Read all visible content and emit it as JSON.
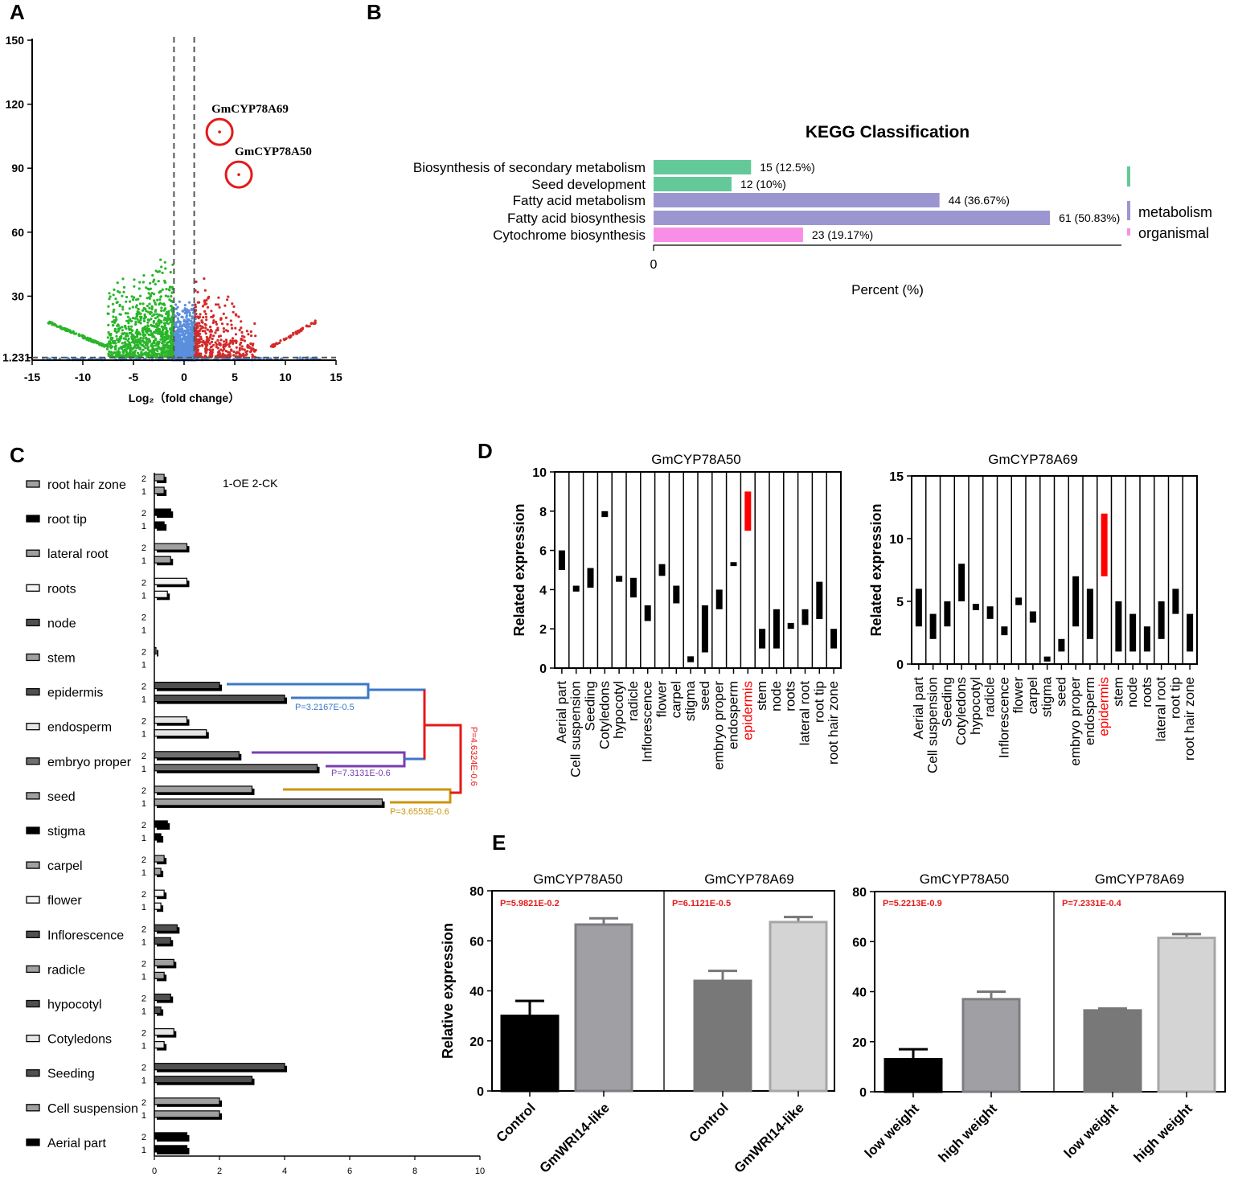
{
  "panel_letters": [
    "A",
    "B",
    "C",
    "D",
    "E"
  ],
  "chart_data": [
    {
      "panel": "A",
      "type": "scatter",
      "title": "",
      "xlabel": "Log₂（fold change）",
      "ylabel": "",
      "xlim": [
        -15,
        15
      ],
      "ylim": [
        0,
        150
      ],
      "xticks": [
        -15,
        -10,
        -5,
        0,
        5,
        10,
        15
      ],
      "yticks": [
        150,
        120,
        90,
        60,
        30
      ],
      "threshold_y": 1.231,
      "threshold_y_label": "1.231",
      "threshold_x": [
        -1,
        1
      ],
      "colors": {
        "down": "#2ab52a",
        "ns": "#5b8fde",
        "up": "#d42a2a",
        "highlight": "#e31a1a"
      },
      "highlights": [
        {
          "label": "GmCYP78A69",
          "x": 3.5,
          "y": 107
        },
        {
          "label": "GmCYP78A50",
          "x": 5.4,
          "y": 87
        }
      ]
    },
    {
      "panel": "B",
      "type": "bar",
      "title": "KEGG Classification",
      "xlabel": "Percent (%)",
      "xtick": "0",
      "categories": [
        "Biosynthesis of secondary metabolism",
        "Seed development",
        "Fatty acid metabolism",
        "Fatty acid biosynthesis",
        "Cytochrome biosynthesis"
      ],
      "values": [
        15,
        12,
        44,
        61,
        23
      ],
      "value_labels": [
        "15 (12.5%)",
        "12 (10%)",
        "44 (36.67%)",
        "61 (50.83%)",
        "23 (19.17%)"
      ],
      "bar_colors": [
        "#63c998",
        "#63c998",
        "#9b96d0",
        "#9b96d0",
        "#f98ee6"
      ],
      "xlim": [
        0,
        72
      ],
      "groups": [
        {
          "label": "",
          "color": "#63c998"
        },
        {
          "label": "metabolism",
          "color": "#9b96d0"
        },
        {
          "label": "organismal",
          "color": "#f98ee6"
        }
      ]
    },
    {
      "panel": "C",
      "type": "bar",
      "title": "",
      "legend_note": "1-OE 2-CK",
      "categories": [
        "root hair zone",
        "root tip",
        "lateral root",
        "roots",
        "node",
        "stem",
        "epidermis",
        "endosperm",
        "embryo proper",
        "seed",
        "stigma",
        "carpel",
        "flower",
        "Inflorescence",
        "radicle",
        "hypocotyl",
        "Cotyledons",
        "Seeding",
        "Cell suspension",
        "Aerial part"
      ],
      "category_colors": [
        "#a0a0a0",
        "#000000",
        "#a0a0a0",
        "#f4f4f4",
        "#505050",
        "#a0a0a0",
        "#505050",
        "#e6e6e6",
        "#707070",
        "#a0a0a0",
        "#000000",
        "#a0a0a0",
        "#f4f4f4",
        "#505050",
        "#a0a0a0",
        "#505050",
        "#e6e6e6",
        "#505050",
        "#a0a0a0",
        "#000000"
      ],
      "series": [
        {
          "name": "2",
          "values": [
            0.3,
            0.5,
            1.0,
            1.0,
            0.0,
            0.05,
            2.0,
            1.0,
            2.6,
            3.0,
            0.4,
            0.3,
            0.3,
            0.7,
            0.6,
            0.5,
            0.6,
            4.0,
            2.0,
            1.0
          ]
        },
        {
          "name": "1",
          "values": [
            0.3,
            0.3,
            0.5,
            0.4,
            0.0,
            0.0,
            4.0,
            1.6,
            5.0,
            7.0,
            0.2,
            0.2,
            0.2,
            0.5,
            0.3,
            0.2,
            0.3,
            3.0,
            2.0,
            1.0
          ]
        }
      ],
      "xlim": [
        0,
        10
      ],
      "xticks": [
        0,
        2,
        4,
        6,
        8,
        10
      ],
      "brackets": [
        {
          "label": "P=3.2167E-0.5",
          "color": "#3c78c8"
        },
        {
          "label": "P=7.3131E-0.6",
          "color": "#7a3db0"
        },
        {
          "label": "P=3.6553E-0.6",
          "color": "#c9960e"
        },
        {
          "label": "P=4.6324E-0.6",
          "color": "#e31a1a"
        }
      ]
    },
    {
      "panel": "D",
      "type": "bar",
      "title": "GmCYP78A50",
      "ylabel": "Related expression",
      "ylim": [
        0,
        10
      ],
      "yticks": [
        0,
        2,
        4,
        6,
        8,
        10
      ],
      "categories": [
        "Aerial part",
        "Cell suspension",
        "Seeding",
        "Cotyledons",
        "hypocotyl",
        "radicle",
        "Inflorescence",
        "flower",
        "carpel",
        "stigma",
        "seed",
        "embryo proper",
        "endosperm",
        "epidermis",
        "stem",
        "node",
        "roots",
        "lateral root",
        "root tip",
        "root hair zone"
      ],
      "ranges": [
        [
          5,
          6
        ],
        [
          3.9,
          4.2
        ],
        [
          4.1,
          5.1
        ],
        [
          7.7,
          8.0
        ],
        [
          4.4,
          4.7
        ],
        [
          3.6,
          4.6
        ],
        [
          2.4,
          3.2
        ],
        [
          4.7,
          5.3
        ],
        [
          3.3,
          4.2
        ],
        [
          0.3,
          0.6
        ],
        [
          0.8,
          3.2
        ],
        [
          3.0,
          4.0
        ],
        [
          5.2,
          5.4
        ],
        [
          7.0,
          9.0
        ],
        [
          1.0,
          2.0
        ],
        [
          1.0,
          3.0
        ],
        [
          2.0,
          2.3
        ],
        [
          2.2,
          3.0
        ],
        [
          2.5,
          4.4
        ],
        [
          1.0,
          2.0
        ]
      ],
      "highlight": "epidermis",
      "highlight_color": "#ff0000"
    },
    {
      "panel": "D",
      "type": "bar",
      "title": "GmCYP78A69",
      "ylabel": "Related expression",
      "ylim": [
        0,
        15
      ],
      "yticks": [
        0,
        5,
        10,
        15
      ],
      "categories": [
        "Aerial part",
        "Cell suspension",
        "Seeding",
        "Cotyledons",
        "hypocotyl",
        "radicle",
        "Inflorescence",
        "flower",
        "carpel",
        "stigma",
        "seed",
        "embryo proper",
        "endosperm",
        "epidermis",
        "stem",
        "node",
        "roots",
        "lateral root",
        "root tip",
        "root hair zone"
      ],
      "ranges": [
        [
          3,
          6
        ],
        [
          2,
          4
        ],
        [
          3,
          5
        ],
        [
          5,
          8
        ],
        [
          4.3,
          4.8
        ],
        [
          3.6,
          4.6
        ],
        [
          2.3,
          3.0
        ],
        [
          4.7,
          5.3
        ],
        [
          3.3,
          4.2
        ],
        [
          0.2,
          0.6
        ],
        [
          1.0,
          2.0
        ],
        [
          3.0,
          7.0
        ],
        [
          2.0,
          6.0
        ],
        [
          7.0,
          12.0
        ],
        [
          1.0,
          5.0
        ],
        [
          1.0,
          4.0
        ],
        [
          1.0,
          3.0
        ],
        [
          2.0,
          5.0
        ],
        [
          4.0,
          6.0
        ],
        [
          1.0,
          4.0
        ]
      ],
      "highlight": "epidermis",
      "highlight_color": "#ff0000"
    },
    {
      "panel": "E",
      "type": "bar",
      "ylabel": "Relative expression",
      "ylim": [
        0,
        80
      ],
      "yticks": [
        0,
        20,
        40,
        60,
        80
      ],
      "groups": [
        {
          "title": "GmCYP78A50",
          "p": "P=5.9821E-0.2",
          "categories": [
            "Control",
            "GmWRI14-like"
          ],
          "values": [
            30,
            66.5
          ],
          "errors": [
            6,
            2.5
          ],
          "fills": [
            "#000000",
            "#a0a0a4"
          ]
        },
        {
          "title": "GmCYP78A69",
          "p": "P=6.1121E-0.5",
          "categories": [
            "Control",
            "GmWRI14-like"
          ],
          "values": [
            44,
            67.5
          ],
          "errors": [
            4,
            2
          ],
          "fills": [
            "#787878",
            "#d4d4d4"
          ]
        }
      ]
    },
    {
      "panel": "E",
      "type": "bar",
      "ylabel": "",
      "ylim": [
        0,
        80
      ],
      "yticks": [
        0,
        20,
        40,
        60,
        80
      ],
      "groups": [
        {
          "title": "GmCYP78A50",
          "p": "P=5.2213E-0.9",
          "categories": [
            "low weight",
            "high weight"
          ],
          "values": [
            13,
            37
          ],
          "errors": [
            4,
            3
          ],
          "fills": [
            "#000000",
            "#a0a0a4"
          ]
        },
        {
          "title": "GmCYP78A69",
          "p": "P=7.2331E-0.4",
          "categories": [
            "low weight",
            "high weight"
          ],
          "values": [
            32.5,
            61.5
          ],
          "errors": [
            0.8,
            1.5
          ],
          "fills": [
            "#787878",
            "#d4d4d4"
          ]
        }
      ]
    }
  ]
}
